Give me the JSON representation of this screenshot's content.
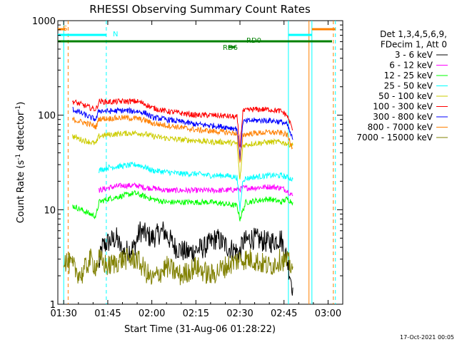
{
  "chart_data": {
    "type": "line",
    "title": "RHESSI Observing Summary Count Rates",
    "xlabel": "Start Time (31-Aug-06 01:28:22)",
    "ylabel_main": "Count Rate (s",
    "ylabel_sup1": "-1",
    "ylabel_mid": " detector",
    "ylabel_sup2": "-1",
    "ylabel_end": ")",
    "y_scale": "log",
    "ylim": [
      1,
      1000
    ],
    "x_minutes_range": [
      -2,
      95
    ],
    "x_ticks": [
      {
        "label": "01:30",
        "min": 0
      },
      {
        "label": "01:45",
        "min": 15
      },
      {
        "label": "02:00",
        "min": 30
      },
      {
        "label": "02:15",
        "min": 45
      },
      {
        "label": "02:30",
        "min": 60
      },
      {
        "label": "02:45",
        "min": 75
      },
      {
        "label": "03:00",
        "min": 90
      }
    ],
    "y_ticks": [
      {
        "label": "1",
        "value": 1
      },
      {
        "label": "10",
        "value": 10
      },
      {
        "label": "100",
        "value": 100
      },
      {
        "label": "1000",
        "value": 1000
      }
    ],
    "legend_header": [
      "Det 1,3,4,5,6,9,",
      "FDecim 1, Att 0"
    ],
    "legend_position": "right",
    "series": [
      {
        "name": "3 - 6 keV",
        "color": "#000000",
        "points": [
          [
            12,
            2.5
          ],
          [
            13,
            4
          ],
          [
            15,
            4.5
          ],
          [
            18,
            5
          ],
          [
            20,
            3.5
          ],
          [
            24,
            4
          ],
          [
            26,
            6
          ],
          [
            30,
            5
          ],
          [
            34,
            6
          ],
          [
            38,
            4
          ],
          [
            42,
            3.5
          ],
          [
            48,
            4
          ],
          [
            52,
            5
          ],
          [
            56,
            4
          ],
          [
            60,
            3.5
          ],
          [
            61,
            4.5
          ],
          [
            64,
            5
          ],
          [
            70,
            4.5
          ],
          [
            74,
            5
          ],
          [
            76,
            3
          ],
          [
            78,
            1.5
          ]
        ]
      },
      {
        "name": "6 - 12 keV",
        "color": "#ff00ff",
        "points": [
          [
            12,
            16
          ],
          [
            15,
            17
          ],
          [
            20,
            18
          ],
          [
            25,
            18
          ],
          [
            28,
            17
          ],
          [
            30,
            17
          ],
          [
            35,
            16
          ],
          [
            40,
            16
          ],
          [
            45,
            16
          ],
          [
            50,
            16
          ],
          [
            55,
            16
          ],
          [
            60,
            16.5
          ],
          [
            61,
            17
          ],
          [
            64,
            17
          ],
          [
            70,
            17.5
          ],
          [
            74,
            17
          ],
          [
            76,
            16
          ],
          [
            78,
            14
          ]
        ]
      },
      {
        "name": "12 - 25 keV",
        "color": "#00ff00",
        "points": [
          [
            3,
            11
          ],
          [
            6,
            10
          ],
          [
            9,
            9
          ],
          [
            11,
            8.5
          ],
          [
            12,
            12
          ],
          [
            15,
            13
          ],
          [
            20,
            14
          ],
          [
            24,
            15
          ],
          [
            27,
            14
          ],
          [
            30,
            13
          ],
          [
            35,
            12
          ],
          [
            40,
            12
          ],
          [
            45,
            12
          ],
          [
            50,
            12
          ],
          [
            55,
            11.5
          ],
          [
            59,
            11
          ],
          [
            60,
            8
          ],
          [
            62,
            12
          ],
          [
            66,
            12.5
          ],
          [
            70,
            13
          ],
          [
            74,
            12
          ],
          [
            76,
            13
          ],
          [
            78,
            12
          ]
        ]
      },
      {
        "name": "25 - 50 keV",
        "color": "#00ffff",
        "points": [
          [
            12,
            26
          ],
          [
            15,
            28
          ],
          [
            20,
            29
          ],
          [
            25,
            30
          ],
          [
            28,
            28
          ],
          [
            30,
            26
          ],
          [
            35,
            25
          ],
          [
            40,
            24
          ],
          [
            45,
            24
          ],
          [
            50,
            23
          ],
          [
            55,
            23
          ],
          [
            59,
            22
          ],
          [
            60,
            10
          ],
          [
            61,
            21
          ],
          [
            64,
            22
          ],
          [
            70,
            23
          ],
          [
            74,
            23
          ],
          [
            76,
            22
          ],
          [
            78,
            21
          ]
        ]
      },
      {
        "name": "50 - 100 keV",
        "color": "#cccc00",
        "points": [
          [
            3,
            60
          ],
          [
            6,
            55
          ],
          [
            9,
            52
          ],
          [
            11,
            50
          ],
          [
            12,
            60
          ],
          [
            15,
            62
          ],
          [
            20,
            64
          ],
          [
            25,
            65
          ],
          [
            28,
            63
          ],
          [
            30,
            60
          ],
          [
            35,
            57
          ],
          [
            40,
            55
          ],
          [
            45,
            54
          ],
          [
            50,
            52
          ],
          [
            55,
            52
          ],
          [
            59,
            50
          ],
          [
            60,
            20
          ],
          [
            61,
            48
          ],
          [
            64,
            50
          ],
          [
            70,
            52
          ],
          [
            74,
            52
          ],
          [
            76,
            50
          ],
          [
            78,
            48
          ]
        ]
      },
      {
        "name": "100 - 300 keV",
        "color": "#ff0000",
        "points": [
          [
            3,
            140
          ],
          [
            6,
            130
          ],
          [
            9,
            120
          ],
          [
            11,
            115
          ],
          [
            12,
            140
          ],
          [
            15,
            138
          ],
          [
            20,
            140
          ],
          [
            25,
            140
          ],
          [
            28,
            130
          ],
          [
            30,
            120
          ],
          [
            35,
            110
          ],
          [
            40,
            105
          ],
          [
            45,
            100
          ],
          [
            50,
            100
          ],
          [
            55,
            98
          ],
          [
            59,
            95
          ],
          [
            60,
            45
          ],
          [
            61,
            110
          ],
          [
            64,
            115
          ],
          [
            70,
            115
          ],
          [
            74,
            110
          ],
          [
            76,
            100
          ],
          [
            78,
            70
          ]
        ]
      },
      {
        "name": "300 - 800 keV",
        "color": "#0000ff",
        "points": [
          [
            3,
            115
          ],
          [
            6,
            105
          ],
          [
            9,
            95
          ],
          [
            11,
            90
          ],
          [
            12,
            112
          ],
          [
            15,
            110
          ],
          [
            20,
            112
          ],
          [
            25,
            110
          ],
          [
            28,
            105
          ],
          [
            30,
            95
          ],
          [
            35,
            90
          ],
          [
            40,
            85
          ],
          [
            45,
            80
          ],
          [
            50,
            78
          ],
          [
            55,
            75
          ],
          [
            59,
            72
          ],
          [
            60,
            35
          ],
          [
            61,
            85
          ],
          [
            64,
            88
          ],
          [
            70,
            88
          ],
          [
            74,
            85
          ],
          [
            76,
            80
          ],
          [
            78,
            55
          ]
        ]
      },
      {
        "name": "800 - 7000 keV",
        "color": "#ff8000",
        "points": [
          [
            3,
            90
          ],
          [
            6,
            85
          ],
          [
            9,
            80
          ],
          [
            11,
            75
          ],
          [
            12,
            92
          ],
          [
            15,
            92
          ],
          [
            20,
            94
          ],
          [
            25,
            92
          ],
          [
            28,
            88
          ],
          [
            30,
            82
          ],
          [
            35,
            78
          ],
          [
            40,
            74
          ],
          [
            45,
            70
          ],
          [
            50,
            68
          ],
          [
            55,
            66
          ],
          [
            59,
            64
          ],
          [
            60,
            30
          ],
          [
            61,
            62
          ],
          [
            64,
            64
          ],
          [
            70,
            66
          ],
          [
            74,
            65
          ],
          [
            76,
            62
          ],
          [
            78,
            45
          ]
        ]
      },
      {
        "name": "7000 - 15000 keV",
        "color": "#808000",
        "points": [
          [
            0,
            3
          ],
          [
            3,
            2.5
          ],
          [
            6,
            2
          ],
          [
            9,
            3
          ],
          [
            11,
            2.5
          ],
          [
            12,
            3
          ],
          [
            15,
            2.5
          ],
          [
            20,
            3
          ],
          [
            25,
            3
          ],
          [
            28,
            2.2
          ],
          [
            30,
            1.8
          ],
          [
            35,
            2.5
          ],
          [
            40,
            2
          ],
          [
            45,
            2.5
          ],
          [
            50,
            2
          ],
          [
            55,
            2.5
          ],
          [
            60,
            3
          ],
          [
            64,
            3
          ],
          [
            70,
            2.5
          ],
          [
            74,
            3
          ],
          [
            76,
            2.8
          ],
          [
            78,
            2.5
          ]
        ]
      }
    ],
    "annotations": [
      {
        "text": "S",
        "color": "#ff8000"
      },
      {
        "text": "N",
        "color": "#00ffff"
      },
      {
        "text": "RD0",
        "color": "#008000"
      },
      {
        "text": "RD6",
        "color": "#008000"
      }
    ],
    "footer_date": "17-Oct-2021 00:05"
  }
}
